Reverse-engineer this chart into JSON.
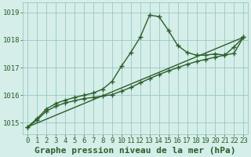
{
  "line1_x": [
    0,
    1,
    2,
    3,
    4,
    5,
    6,
    7,
    8,
    9,
    10,
    11,
    12,
    13,
    14,
    15,
    16,
    17,
    18,
    19,
    20,
    21,
    22,
    23
  ],
  "line1_y": [
    1014.85,
    1015.15,
    1015.5,
    1015.7,
    1015.82,
    1015.92,
    1016.0,
    1016.08,
    1016.22,
    1016.5,
    1017.05,
    1017.55,
    1018.1,
    1018.9,
    1018.85,
    1018.35,
    1017.8,
    1017.55,
    1017.45,
    1017.45,
    1017.5,
    1017.45,
    1017.75,
    1018.1
  ],
  "line2_x": [
    0,
    1,
    2,
    3,
    4,
    5,
    6,
    7,
    8,
    9,
    10,
    11,
    12,
    13,
    14,
    15,
    16,
    17,
    18,
    19,
    20,
    21,
    22,
    23
  ],
  "line2_y": [
    1014.85,
    1015.1,
    1015.42,
    1015.6,
    1015.72,
    1015.8,
    1015.88,
    1015.92,
    1015.97,
    1016.02,
    1016.15,
    1016.28,
    1016.45,
    1016.6,
    1016.75,
    1016.88,
    1017.0,
    1017.12,
    1017.22,
    1017.3,
    1017.38,
    1017.45,
    1017.52,
    1018.1
  ],
  "line3_x": [
    0,
    23
  ],
  "line3_y": [
    1014.85,
    1018.1
  ],
  "line_color": "#2a5e2a",
  "bg_color": "#d5eee9",
  "grid_color": "#98c8c0",
  "xlabel": "Graphe pression niveau de la mer (hPa)",
  "ylim": [
    1014.6,
    1019.35
  ],
  "xlim": [
    -0.5,
    23.5
  ],
  "yticks": [
    1015,
    1016,
    1017,
    1018,
    1019
  ],
  "xticks": [
    0,
    1,
    2,
    3,
    4,
    5,
    6,
    7,
    8,
    9,
    10,
    11,
    12,
    13,
    14,
    15,
    16,
    17,
    18,
    19,
    20,
    21,
    22,
    23
  ],
  "marker": "+",
  "markersize": 5,
  "linewidth": 1.0,
  "xlabel_fontsize": 8,
  "tick_fontsize": 6.5
}
